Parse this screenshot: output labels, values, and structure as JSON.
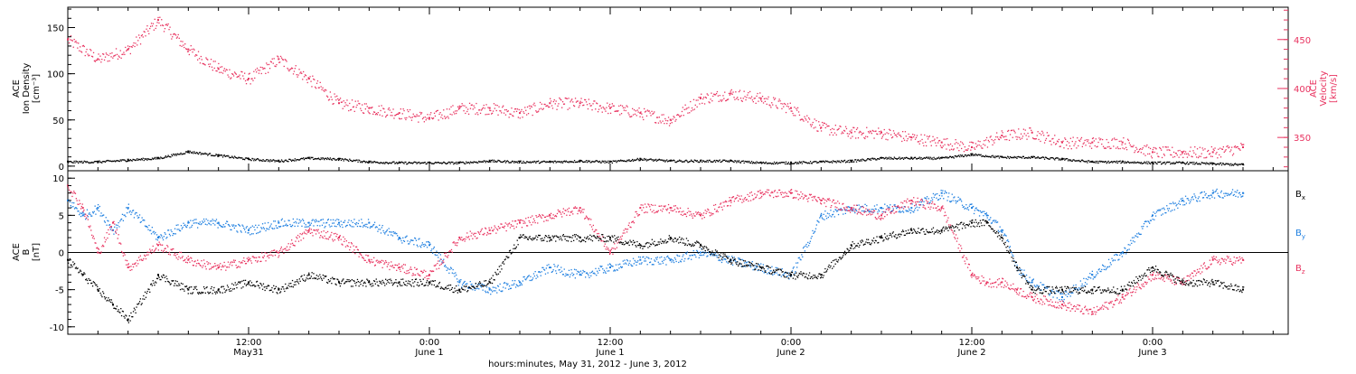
{
  "colors": {
    "black": "#000000",
    "pink": "#e8325f",
    "blue": "#1e7fe0",
    "axis": "#000000"
  },
  "x_axis": {
    "label": "hours:minutes, May 31, 2012 - June 3, 2012",
    "start_hour": 0,
    "end_hour": 81,
    "ticks": [
      {
        "hour": 12,
        "time": "12:00",
        "date": "May31"
      },
      {
        "hour": 24,
        "time": "0:00",
        "date": "June 1"
      },
      {
        "hour": 36,
        "time": "12:00",
        "date": "June 1"
      },
      {
        "hour": 48,
        "time": "0:00",
        "date": "June 2"
      },
      {
        "hour": 60,
        "time": "12:00",
        "date": "June 2"
      },
      {
        "hour": 72,
        "time": "0:00",
        "date": "June 3"
      }
    ]
  },
  "chart_data": [
    {
      "type": "scatter",
      "title": "",
      "ylabel": "ACE Ion Density [cm⁻³]",
      "ylabel_lines": [
        "ACE",
        "Ion Density",
        "[cm⁻³]"
      ],
      "ylim": [
        -5,
        172
      ],
      "yticks": [
        0,
        50,
        100,
        150
      ],
      "y2label": "ACE Velocity [km/s]",
      "y2label_lines": [
        "ACE",
        "Velocity",
        "[km/s]"
      ],
      "y2lim": [
        316,
        483
      ],
      "y2ticks": [
        350,
        400,
        450
      ],
      "series": [
        {
          "role": "density",
          "axis": "left",
          "color": "pink_none",
          "hours": [
            0,
            2,
            4,
            6,
            8,
            10,
            12,
            14,
            16,
            18,
            20,
            22,
            24,
            26,
            28,
            30,
            32,
            34,
            36,
            38,
            40,
            42,
            44,
            46,
            48,
            50,
            52,
            54,
            56,
            58,
            60,
            62,
            64,
            66,
            68,
            70,
            72,
            74,
            76,
            78
          ],
          "values": [
            5,
            5,
            7,
            9,
            16,
            12,
            8,
            6,
            9,
            8,
            5,
            4,
            4,
            4,
            6,
            5,
            5,
            6,
            5,
            8,
            6,
            6,
            6,
            4,
            4,
            5,
            6,
            9,
            9,
            9,
            13,
            10,
            10,
            8,
            5,
            5,
            4,
            4,
            3,
            2
          ]
        },
        {
          "role": "velocity",
          "axis": "right",
          "hours": [
            0,
            2,
            4,
            6,
            8,
            10,
            12,
            14,
            16,
            18,
            20,
            22,
            24,
            26,
            28,
            30,
            32,
            34,
            36,
            38,
            40,
            42,
            44,
            46,
            48,
            50,
            52,
            54,
            56,
            58,
            60,
            62,
            64,
            66,
            68,
            70,
            72,
            74,
            76,
            78
          ],
          "values": [
            450,
            430,
            440,
            470,
            440,
            420,
            410,
            430,
            410,
            385,
            380,
            375,
            370,
            380,
            380,
            375,
            385,
            385,
            380,
            375,
            368,
            390,
            395,
            390,
            380,
            360,
            355,
            355,
            350,
            345,
            340,
            352,
            355,
            345,
            345,
            345,
            335,
            335,
            335,
            340
          ]
        }
      ]
    },
    {
      "type": "scatter",
      "title": "",
      "ylabel": "ACE B [nT]",
      "ylabel_lines": [
        "ACE",
        "B",
        "[nT]"
      ],
      "ylim": [
        -11,
        11
      ],
      "yticks": [
        -10,
        -5,
        0,
        5,
        10
      ],
      "zero_line": true,
      "series": [
        {
          "name": "B",
          "subscript": "x",
          "color": "black",
          "hours": [
            0,
            1,
            2,
            3,
            4,
            6,
            8,
            10,
            12,
            14,
            16,
            18,
            20,
            22,
            24,
            26,
            28,
            30,
            32,
            34,
            36,
            38,
            40,
            42,
            44,
            46,
            48,
            50,
            52,
            54,
            56,
            58,
            60,
            61,
            62,
            63,
            64,
            66,
            68,
            70,
            72,
            74,
            76,
            78
          ],
          "values": [
            -1,
            -3,
            -5,
            -7,
            -9,
            -3,
            -5,
            -5,
            -4,
            -5,
            -3,
            -4,
            -4,
            -4,
            -4,
            -5,
            -4,
            2,
            2,
            2,
            2,
            1,
            2,
            1,
            -1,
            -2,
            -3,
            -3,
            1,
            2,
            3,
            3,
            4,
            4,
            2,
            -2,
            -5,
            -5,
            -5,
            -5,
            -2,
            -4,
            -4,
            -5
          ]
        },
        {
          "name": "B",
          "subscript": "y",
          "color": "blue",
          "hours": [
            0,
            1,
            2,
            3,
            4,
            6,
            8,
            10,
            12,
            14,
            16,
            18,
            20,
            22,
            24,
            26,
            28,
            30,
            32,
            34,
            36,
            38,
            40,
            42,
            44,
            46,
            48,
            50,
            52,
            54,
            56,
            58,
            60,
            61,
            62,
            63,
            64,
            66,
            68,
            70,
            72,
            74,
            76,
            78
          ],
          "values": [
            7,
            5,
            6,
            3,
            6,
            2,
            4,
            4,
            3,
            4,
            4,
            4,
            4,
            2,
            1,
            -4,
            -5,
            -4,
            -2,
            -3,
            -2,
            -1,
            -1,
            0,
            -1,
            -2,
            -3,
            5,
            6,
            6,
            6,
            8,
            6,
            5,
            3,
            -2,
            -4,
            -6,
            -3,
            0,
            5,
            7,
            8,
            8
          ]
        },
        {
          "name": "B",
          "subscript": "z",
          "color": "pink",
          "hours": [
            0,
            1,
            2,
            3,
            4,
            6,
            8,
            10,
            12,
            14,
            16,
            18,
            20,
            22,
            24,
            26,
            28,
            30,
            32,
            34,
            36,
            38,
            40,
            42,
            44,
            46,
            48,
            50,
            52,
            54,
            56,
            58,
            60,
            61,
            62,
            63,
            64,
            66,
            68,
            70,
            72,
            74,
            76,
            78
          ],
          "values": [
            9,
            6,
            0,
            4,
            -2,
            1,
            -1,
            -2,
            -1,
            0,
            3,
            2,
            -1,
            -2,
            -3,
            2,
            3,
            4,
            5,
            6,
            0,
            6,
            6,
            5,
            7,
            8,
            8,
            7,
            6,
            5,
            7,
            6,
            -3,
            -4,
            -4,
            -5,
            -6,
            -7,
            -8,
            -6,
            -3,
            -4,
            -1,
            -1
          ]
        }
      ]
    }
  ],
  "legend": {
    "panel2": [
      {
        "name": "B",
        "sub": "x",
        "color": "black"
      },
      {
        "name": "B",
        "sub": "y",
        "color": "blue"
      },
      {
        "name": "B",
        "sub": "z",
        "color": "pink"
      }
    ]
  }
}
